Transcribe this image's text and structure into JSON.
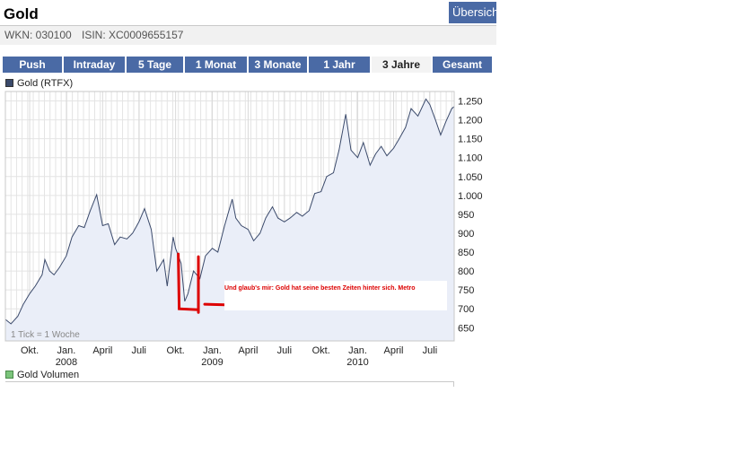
{
  "header": {
    "title": "Gold",
    "overview_label": "Übersich",
    "wkn": "WKN: 030100",
    "isin": "ISIN: XC0009655157"
  },
  "tabs": [
    {
      "label": "Push",
      "active": false
    },
    {
      "label": "Intraday",
      "active": false
    },
    {
      "label": "5 Tage",
      "active": false
    },
    {
      "label": "1 Monat",
      "active": false
    },
    {
      "label": "3 Monate",
      "active": false
    },
    {
      "label": "1 Jahr",
      "active": false
    },
    {
      "label": "3 Jahre",
      "active": true
    },
    {
      "label": "Gesamt",
      "active": false
    }
  ],
  "colors": {
    "tab_bg": "#4a6aa5",
    "line": "#3b4a6b",
    "area_fill": "#eaeef8",
    "annotation": "#dd0000",
    "volume_swatch": "#7bc47b",
    "price_swatch": "#3b4a6b"
  },
  "chart_data": {
    "type": "area",
    "legend": "Gold (RTFX)",
    "tick_note": "1 Tick = 1 Woche",
    "ylim": [
      615,
      1275
    ],
    "y_scale": "linear",
    "grid": true,
    "y_ticks": [
      650,
      700,
      750,
      800,
      850,
      900,
      950,
      1000,
      1050,
      1100,
      1150,
      1200,
      1250
    ],
    "y_tick_labels": [
      "650",
      "700",
      "750",
      "800",
      "850",
      "900",
      "950",
      "1.000",
      "1.050",
      "1.100",
      "1.150",
      "1.200",
      "1.250"
    ],
    "x_range": [
      "2007-08-01",
      "2010-08-31"
    ],
    "x_ticks": [
      {
        "date": "2007-10-01",
        "label": "Okt.",
        "year": ""
      },
      {
        "date": "2008-01-01",
        "label": "Jan.",
        "year": "2008"
      },
      {
        "date": "2008-04-01",
        "label": "April",
        "year": ""
      },
      {
        "date": "2008-07-01",
        "label": "Juli",
        "year": ""
      },
      {
        "date": "2008-10-01",
        "label": "Okt.",
        "year": ""
      },
      {
        "date": "2009-01-01",
        "label": "Jan.",
        "year": "2009"
      },
      {
        "date": "2009-04-01",
        "label": "April",
        "year": ""
      },
      {
        "date": "2009-07-01",
        "label": "Juli",
        "year": ""
      },
      {
        "date": "2009-10-01",
        "label": "Okt.",
        "year": ""
      },
      {
        "date": "2010-01-01",
        "label": "Jan.",
        "year": "2010"
      },
      {
        "date": "2010-04-01",
        "label": "April",
        "year": ""
      },
      {
        "date": "2010-07-01",
        "label": "Juli",
        "year": ""
      }
    ],
    "series": [
      {
        "name": "Gold (RTFX)",
        "points": [
          [
            "2007-08-01",
            672
          ],
          [
            "2007-08-15",
            660
          ],
          [
            "2007-09-01",
            680
          ],
          [
            "2007-09-15",
            712
          ],
          [
            "2007-10-01",
            740
          ],
          [
            "2007-10-15",
            760
          ],
          [
            "2007-11-01",
            790
          ],
          [
            "2007-11-08",
            830
          ],
          [
            "2007-11-20",
            800
          ],
          [
            "2007-12-01",
            790
          ],
          [
            "2007-12-15",
            810
          ],
          [
            "2008-01-01",
            840
          ],
          [
            "2008-01-15",
            890
          ],
          [
            "2008-02-01",
            920
          ],
          [
            "2008-02-15",
            915
          ],
          [
            "2008-03-01",
            960
          ],
          [
            "2008-03-17",
            1002
          ],
          [
            "2008-04-01",
            920
          ],
          [
            "2008-04-15",
            925
          ],
          [
            "2008-05-01",
            870
          ],
          [
            "2008-05-15",
            890
          ],
          [
            "2008-06-01",
            885
          ],
          [
            "2008-06-15",
            900
          ],
          [
            "2008-07-01",
            930
          ],
          [
            "2008-07-15",
            965
          ],
          [
            "2008-08-01",
            910
          ],
          [
            "2008-08-15",
            800
          ],
          [
            "2008-09-01",
            830
          ],
          [
            "2008-09-10",
            760
          ],
          [
            "2008-09-25",
            890
          ],
          [
            "2008-10-01",
            860
          ],
          [
            "2008-10-15",
            820
          ],
          [
            "2008-10-24",
            720
          ],
          [
            "2008-11-01",
            740
          ],
          [
            "2008-11-15",
            800
          ],
          [
            "2008-12-01",
            780
          ],
          [
            "2008-12-15",
            840
          ],
          [
            "2009-01-01",
            860
          ],
          [
            "2009-01-15",
            850
          ],
          [
            "2009-02-01",
            920
          ],
          [
            "2009-02-20",
            990
          ],
          [
            "2009-03-01",
            940
          ],
          [
            "2009-03-15",
            920
          ],
          [
            "2009-04-01",
            910
          ],
          [
            "2009-04-15",
            880
          ],
          [
            "2009-05-01",
            900
          ],
          [
            "2009-05-15",
            940
          ],
          [
            "2009-06-01",
            970
          ],
          [
            "2009-06-15",
            940
          ],
          [
            "2009-07-01",
            930
          ],
          [
            "2009-07-15",
            940
          ],
          [
            "2009-08-01",
            955
          ],
          [
            "2009-08-15",
            945
          ],
          [
            "2009-09-01",
            960
          ],
          [
            "2009-09-15",
            1005
          ],
          [
            "2009-10-01",
            1010
          ],
          [
            "2009-10-15",
            1050
          ],
          [
            "2009-11-01",
            1060
          ],
          [
            "2009-11-15",
            1120
          ],
          [
            "2009-12-02",
            1215
          ],
          [
            "2009-12-15",
            1120
          ],
          [
            "2010-01-01",
            1100
          ],
          [
            "2010-01-15",
            1140
          ],
          [
            "2010-02-01",
            1080
          ],
          [
            "2010-02-15",
            1110
          ],
          [
            "2010-03-01",
            1130
          ],
          [
            "2010-03-15",
            1105
          ],
          [
            "2010-04-01",
            1125
          ],
          [
            "2010-04-15",
            1150
          ],
          [
            "2010-05-01",
            1180
          ],
          [
            "2010-05-15",
            1230
          ],
          [
            "2010-06-01",
            1210
          ],
          [
            "2010-06-21",
            1255
          ],
          [
            "2010-07-01",
            1240
          ],
          [
            "2010-07-15",
            1200
          ],
          [
            "2010-07-28",
            1160
          ],
          [
            "2010-08-10",
            1195
          ],
          [
            "2010-08-25",
            1230
          ],
          [
            "2010-08-31",
            1235
          ]
        ]
      }
    ],
    "annotation": {
      "text": "Und glaub's mir: Gold hat seine besten Zeiten hinter sich.  Metro",
      "marker_dates": [
        "2008-10-10",
        "2008-11-25"
      ]
    }
  },
  "volume": {
    "legend": "Gold Volumen"
  }
}
